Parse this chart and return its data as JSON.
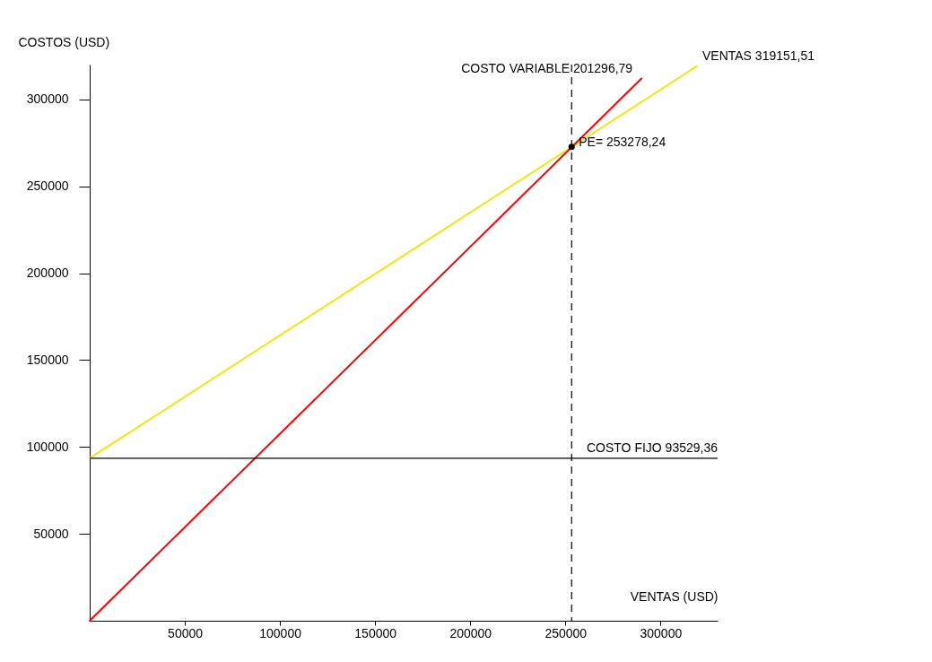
{
  "chart_data": {
    "type": "line",
    "xlabel": "VENTAS (USD)",
    "ylabel": "COSTOS (USD)",
    "xlim": [
      0,
      330000
    ],
    "ylim": [
      0,
      320000
    ],
    "xticks": [
      50000,
      100000,
      150000,
      200000,
      250000,
      300000
    ],
    "yticks": [
      50000,
      100000,
      150000,
      200000,
      250000,
      300000
    ],
    "grid": false,
    "marker": "none",
    "line_style": "solid",
    "series": [
      {
        "color": "#f2e600",
        "x": [
          0,
          319000
        ],
        "values": [
          93500,
          319000
        ]
      },
      {
        "color": "#ff0000",
        "x": [
          0,
          290000
        ],
        "values": [
          0,
          312000
        ]
      },
      {
        "type": "scatter",
        "color": "#000000",
        "marker": "circle",
        "x": [
          253278.24
        ],
        "values": [
          272600
        ]
      }
    ],
    "ref_lines": [
      {
        "axis": "y",
        "value": 93529.36,
        "label": "COSTO FIJO 93529,36",
        "color": "#000000",
        "line_style": "solid"
      },
      {
        "axis": "x",
        "value": 253278.24,
        "label": "PE= 253278,24",
        "color": "#000000",
        "line_style": "dashed"
      }
    ],
    "annotations": [
      {
        "text": "COSTO VARIABLE 201296,79",
        "x": 290000,
        "y": 312000
      },
      {
        "text": "VENTAS 319151,51",
        "x": 319151.51,
        "y": 319151.51
      }
    ]
  }
}
